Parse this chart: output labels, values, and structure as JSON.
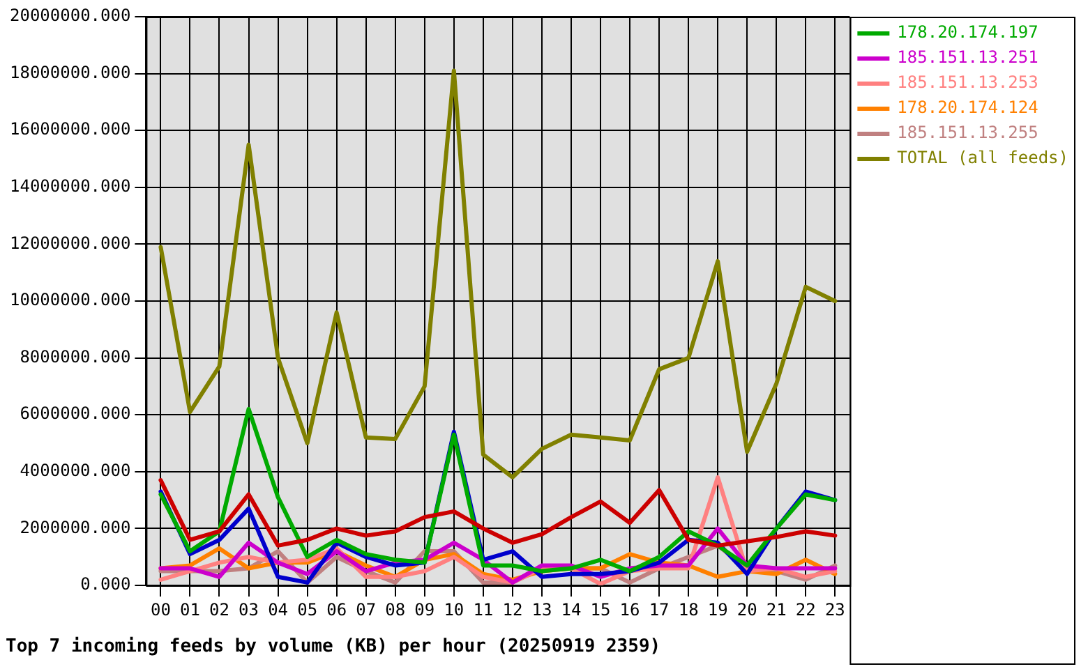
{
  "chart_data": {
    "type": "line",
    "title": "Top 7 incoming feeds by volume (KB) per hour (20250919 2359)",
    "categories": [
      "00",
      "01",
      "02",
      "03",
      "04",
      "05",
      "06",
      "07",
      "08",
      "09",
      "10",
      "11",
      "12",
      "13",
      "14",
      "15",
      "16",
      "17",
      "18",
      "19",
      "20",
      "21",
      "22",
      "23"
    ],
    "ylim": [
      0,
      20000000
    ],
    "yticks": [
      {
        "value": 0,
        "label": "0.000"
      },
      {
        "value": 2000000,
        "label": "2000000.000"
      },
      {
        "value": 4000000,
        "label": "4000000.000"
      },
      {
        "value": 6000000,
        "label": "6000000.000"
      },
      {
        "value": 8000000,
        "label": "8000000.000"
      },
      {
        "value": 10000000,
        "label": "10000000.000"
      },
      {
        "value": 12000000,
        "label": "12000000.000"
      },
      {
        "value": 14000000,
        "label": "14000000.000"
      },
      {
        "value": 16000000,
        "label": "16000000.000"
      },
      {
        "value": 18000000,
        "label": "18000000.000"
      },
      {
        "value": 20000000,
        "label": "20000000.000"
      }
    ],
    "grid": true,
    "legend": "right",
    "line_style": "solid",
    "series": [
      {
        "color": "#cc0000",
        "values": [
          3700000,
          1600000,
          1900000,
          3200000,
          1400000,
          1600000,
          2000000,
          1750000,
          1900000,
          2400000,
          2600000,
          2000000,
          1500000,
          1800000,
          2400000,
          2950000,
          2200000,
          3350000,
          1600000,
          1400000,
          1550000,
          1700000,
          1900000,
          1750000
        ]
      },
      {
        "name": "178.20.174.197",
        "color": "#00aa00",
        "values": [
          3200000,
          1200000,
          1900000,
          6200000,
          3100000,
          1000000,
          1600000,
          1100000,
          900000,
          800000,
          5300000,
          700000,
          700000,
          500000,
          600000,
          900000,
          500000,
          1000000,
          1900000,
          1400000,
          700000,
          2000000,
          3200000,
          3000000
        ]
      },
      {
        "color": "#0000cc",
        "values": [
          3300000,
          1100000,
          1600000,
          2700000,
          300000,
          100000,
          1500000,
          1000000,
          700000,
          800000,
          5400000,
          900000,
          1200000,
          300000,
          400000,
          400000,
          500000,
          800000,
          1600000,
          1500000,
          400000,
          2000000,
          3300000,
          3000000
        ]
      },
      {
        "name": "185.151.13.251",
        "color": "#cc00cc",
        "values": [
          600000,
          600000,
          300000,
          1500000,
          800000,
          400000,
          1200000,
          500000,
          800000,
          900000,
          1500000,
          900000,
          100000,
          700000,
          700000,
          300000,
          600000,
          700000,
          700000,
          2000000,
          700000,
          600000,
          600000,
          600000
        ]
      },
      {
        "name": "185.151.13.253",
        "color": "#ff8080",
        "values": [
          200000,
          500000,
          800000,
          1000000,
          800000,
          900000,
          1300000,
          300000,
          300000,
          500000,
          1000000,
          300000,
          100000,
          600000,
          600000,
          50000,
          500000,
          600000,
          600000,
          3800000,
          500000,
          600000,
          300000,
          500000
        ]
      },
      {
        "name": "178.20.174.124",
        "color": "#ff8000",
        "values": [
          600000,
          700000,
          1300000,
          600000,
          800000,
          800000,
          1200000,
          700000,
          300000,
          900000,
          1100000,
          400000,
          200000,
          500000,
          600000,
          600000,
          1100000,
          800000,
          700000,
          300000,
          500000,
          400000,
          900000,
          400000
        ]
      },
      {
        "name": "185.151.13.255",
        "color": "#c08080",
        "values": [
          500000,
          500000,
          500000,
          600000,
          1200000,
          100000,
          1000000,
          500000,
          100000,
          1200000,
          1200000,
          100000,
          100000,
          600000,
          600000,
          600000,
          100000,
          600000,
          1000000,
          1400000,
          600000,
          500000,
          200000,
          700000
        ]
      },
      {
        "name": "TOTAL (all feeds)",
        "color": "#808000",
        "values": [
          11900000,
          6100000,
          7700000,
          15500000,
          8000000,
          5000000,
          9600000,
          5200000,
          5150000,
          7000000,
          18100000,
          4600000,
          3800000,
          4800000,
          5300000,
          5200000,
          5100000,
          7600000,
          8000000,
          11400000,
          4700000,
          7100000,
          10500000,
          10000000
        ]
      }
    ]
  }
}
